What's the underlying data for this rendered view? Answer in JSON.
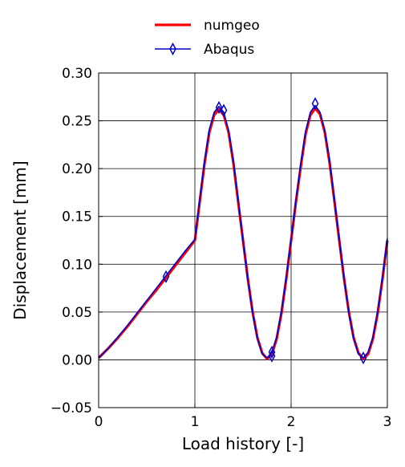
{
  "chart_data": {
    "type": "line",
    "title": "",
    "xlabel": "Load history [-]",
    "ylabel": "Displacement [mm]",
    "xlim": [
      0,
      3
    ],
    "ylim": [
      -0.05,
      0.3
    ],
    "x_ticks": [
      0,
      1,
      2,
      3
    ],
    "x_tick_labels": [
      "0",
      "1",
      "2",
      "3"
    ],
    "y_ticks": [
      -0.05,
      0.0,
      0.05,
      0.1,
      0.15,
      0.2,
      0.25,
      0.3
    ],
    "y_tick_labels": [
      "−0.05",
      "0.00",
      "0.05",
      "0.10",
      "0.15",
      "0.20",
      "0.25",
      "0.30"
    ],
    "grid": true,
    "legend_position": "top-center",
    "series": [
      {
        "name": "numgeo",
        "color": "#ff0000",
        "marker": "none",
        "x": [
          0,
          0.1,
          0.2,
          0.3,
          0.4,
          0.5,
          0.6,
          0.7,
          0.8,
          0.9,
          1.0,
          1.05,
          1.1,
          1.15,
          1.2,
          1.25,
          1.3,
          1.35,
          1.4,
          1.45,
          1.5,
          1.55,
          1.6,
          1.65,
          1.7,
          1.75,
          1.8,
          1.85,
          1.9,
          1.95,
          2.0,
          2.05,
          2.1,
          2.15,
          2.2,
          2.25,
          2.3,
          2.35,
          2.4,
          2.45,
          2.5,
          2.55,
          2.6,
          2.65,
          2.7,
          2.75,
          2.8,
          2.85,
          2.9,
          2.95,
          3.0
        ],
        "y": [
          0.002,
          0.012,
          0.023,
          0.035,
          0.048,
          0.061,
          0.073,
          0.086,
          0.099,
          0.112,
          0.125,
          0.165,
          0.205,
          0.238,
          0.256,
          0.262,
          0.256,
          0.238,
          0.206,
          0.165,
          0.125,
          0.085,
          0.05,
          0.023,
          0.007,
          0.001,
          0.006,
          0.022,
          0.049,
          0.085,
          0.125,
          0.165,
          0.202,
          0.236,
          0.256,
          0.263,
          0.257,
          0.238,
          0.206,
          0.166,
          0.125,
          0.085,
          0.05,
          0.023,
          0.007,
          0.001,
          0.006,
          0.022,
          0.049,
          0.085,
          0.125
        ]
      },
      {
        "name": "Abaqus",
        "color": "#0000cc",
        "marker": "thin-diamond",
        "x": [
          0,
          0.1,
          0.2,
          0.3,
          0.4,
          0.5,
          0.6,
          0.7,
          0.8,
          0.9,
          1.0,
          1.05,
          1.1,
          1.15,
          1.2,
          1.25,
          1.3,
          1.35,
          1.4,
          1.45,
          1.5,
          1.55,
          1.6,
          1.65,
          1.7,
          1.75,
          1.8,
          1.85,
          1.9,
          1.95,
          2.0,
          2.05,
          2.1,
          2.15,
          2.2,
          2.25,
          2.3,
          2.35,
          2.4,
          2.45,
          2.5,
          2.55,
          2.6,
          2.65,
          2.7,
          2.75,
          2.8,
          2.85,
          2.9,
          2.95,
          3.0
        ],
        "y": [
          0.002,
          0.012,
          0.024,
          0.036,
          0.049,
          0.062,
          0.075,
          0.088,
          0.101,
          0.114,
          0.126,
          0.168,
          0.208,
          0.241,
          0.259,
          0.265,
          0.259,
          0.24,
          0.208,
          0.167,
          0.125,
          0.084,
          0.049,
          0.022,
          0.006,
          0.002,
          0.008,
          0.024,
          0.051,
          0.087,
          0.126,
          0.167,
          0.205,
          0.239,
          0.259,
          0.266,
          0.259,
          0.24,
          0.208,
          0.167,
          0.126,
          0.085,
          0.049,
          0.022,
          0.006,
          0.002,
          0.008,
          0.024,
          0.051,
          0.087,
          0.127
        ],
        "marker_points": [
          {
            "x": 0.7,
            "y": 0.087
          },
          {
            "x": 1.25,
            "y": 0.264
          },
          {
            "x": 1.3,
            "y": 0.261
          },
          {
            "x": 1.8,
            "y": 0.004
          },
          {
            "x": 1.8,
            "y": 0.008
          },
          {
            "x": 2.25,
            "y": 0.268
          },
          {
            "x": 2.75,
            "y": 0.002
          }
        ]
      }
    ]
  }
}
